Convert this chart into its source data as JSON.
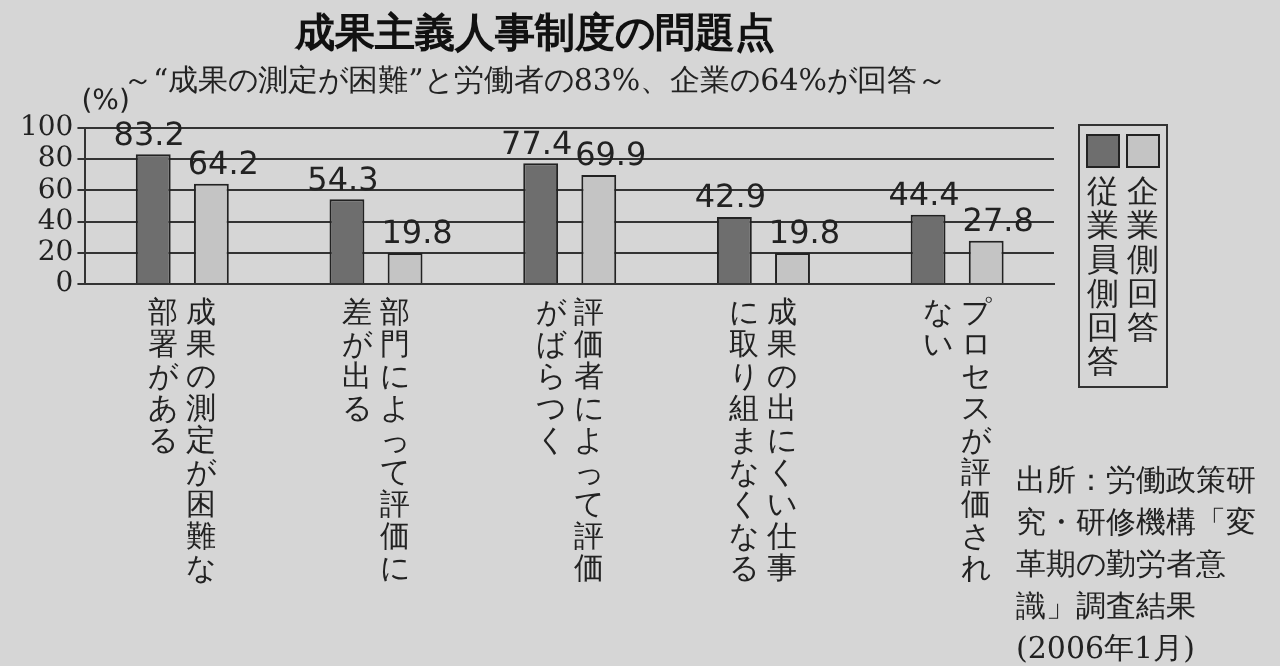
{
  "chart_data": {
    "type": "bar",
    "title": "成果主義人事制度の問題点",
    "subtitle": "～“成果の測定が困難”と労働者の83%、企業の64%が回答～",
    "ylabel": "(%)",
    "categories": [
      "成果の測定が困難な部署がある",
      "部門によって評価に差が出る",
      "評価者によって評価がばらつく",
      "成果の出にくい仕事に取り組まなくなる",
      "プロセスが評価されない"
    ],
    "series": [
      {
        "name": "従業員側回答",
        "color": "#6e6e6e",
        "values": [
          83.2,
          54.3,
          77.4,
          42.9,
          44.4
        ]
      },
      {
        "name": "企業側回答",
        "color": "#c4c4c4",
        "values": [
          64.2,
          19.8,
          69.9,
          19.8,
          27.8
        ]
      }
    ],
    "ylim": [
      0,
      100
    ],
    "yticks": [
      0,
      20,
      40,
      60,
      80,
      100
    ],
    "grid": "y",
    "legend": "right",
    "data_labels": true,
    "annotations": [
      "出所：労働政策研究・研修機構「変革期の勤労者意識」調査結果",
      "(2006年1月)"
    ]
  }
}
